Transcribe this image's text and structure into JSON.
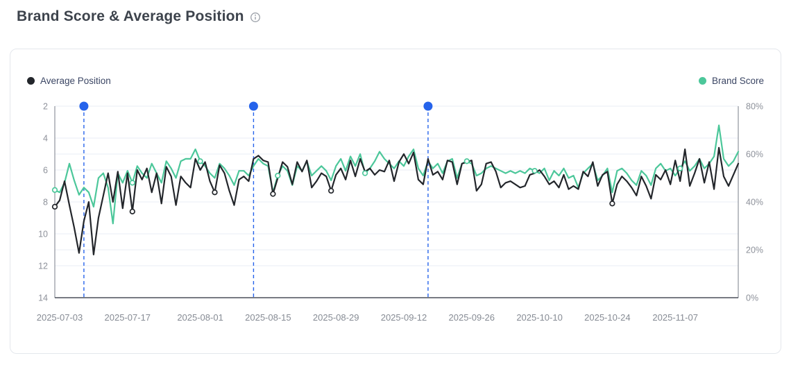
{
  "header": {
    "title": "Brand Score & Average Position",
    "info_icon": "info-icon"
  },
  "legend": {
    "average_position": {
      "label": "Average Position",
      "color": "#23262b"
    },
    "brand_score": {
      "label": "Brand Score",
      "color": "#4cc79a"
    }
  },
  "colors": {
    "event_blue": "#2563eb",
    "grid": "#e9ecf4",
    "axis_line": "#90949c",
    "baseline": "#4a4f58",
    "tick_text": "#8d919a"
  },
  "chart_data": {
    "type": "line",
    "title": "Brand Score & Average Position",
    "x": [
      "2025-07-02",
      "2025-07-03",
      "2025-07-04",
      "2025-07-05",
      "2025-07-06",
      "2025-07-07",
      "2025-07-08",
      "2025-07-09",
      "2025-07-10",
      "2025-07-11",
      "2025-07-12",
      "2025-07-13",
      "2025-07-14",
      "2025-07-15",
      "2025-07-16",
      "2025-07-17",
      "2025-07-18",
      "2025-07-19",
      "2025-07-20",
      "2025-07-21",
      "2025-07-22",
      "2025-07-23",
      "2025-07-24",
      "2025-07-25",
      "2025-07-26",
      "2025-07-27",
      "2025-07-28",
      "2025-07-29",
      "2025-07-30",
      "2025-07-31",
      "2025-08-01",
      "2025-08-02",
      "2025-08-03",
      "2025-08-04",
      "2025-08-05",
      "2025-08-06",
      "2025-08-07",
      "2025-08-08",
      "2025-08-09",
      "2025-08-10",
      "2025-08-11",
      "2025-08-12",
      "2025-08-13",
      "2025-08-14",
      "2025-08-15",
      "2025-08-16",
      "2025-08-17",
      "2025-08-18",
      "2025-08-19",
      "2025-08-20",
      "2025-08-21",
      "2025-08-22",
      "2025-08-23",
      "2025-08-24",
      "2025-08-25",
      "2025-08-26",
      "2025-08-27",
      "2025-08-28",
      "2025-08-29",
      "2025-08-30",
      "2025-08-31",
      "2025-09-01",
      "2025-09-02",
      "2025-09-03",
      "2025-09-04",
      "2025-09-05",
      "2025-09-06",
      "2025-09-07",
      "2025-09-08",
      "2025-09-09",
      "2025-09-10",
      "2025-09-11",
      "2025-09-12",
      "2025-09-13",
      "2025-09-14",
      "2025-09-15",
      "2025-09-16",
      "2025-09-17",
      "2025-09-18",
      "2025-09-19",
      "2025-09-20",
      "2025-09-21",
      "2025-09-22",
      "2025-09-23",
      "2025-09-24",
      "2025-09-25",
      "2025-09-26",
      "2025-09-27",
      "2025-09-28",
      "2025-09-29",
      "2025-09-30",
      "2025-10-01",
      "2025-10-02",
      "2025-10-03",
      "2025-10-04",
      "2025-10-05",
      "2025-10-06",
      "2025-10-07",
      "2025-10-08",
      "2025-10-09",
      "2025-10-10",
      "2025-10-11",
      "2025-10-12",
      "2025-10-13",
      "2025-10-14",
      "2025-10-15",
      "2025-10-16",
      "2025-10-17",
      "2025-10-18",
      "2025-10-19",
      "2025-10-20",
      "2025-10-21",
      "2025-10-22",
      "2025-10-23",
      "2025-10-24",
      "2025-10-25",
      "2025-10-26",
      "2025-10-27",
      "2025-10-28",
      "2025-10-29",
      "2025-10-30",
      "2025-10-31",
      "2025-11-01",
      "2025-11-02",
      "2025-11-03",
      "2025-11-04",
      "2025-11-05",
      "2025-11-06",
      "2025-11-07",
      "2025-11-08",
      "2025-11-09",
      "2025-11-10",
      "2025-11-11",
      "2025-11-12",
      "2025-11-13",
      "2025-11-14",
      "2025-11-15",
      "2025-11-16",
      "2025-11-17",
      "2025-11-18",
      "2025-11-19",
      "2025-11-20"
    ],
    "series": [
      {
        "name": "Average Position",
        "axis": "left",
        "color": "#23262b",
        "values": [
          8.3,
          7.9,
          6.7,
          8.2,
          9.6,
          11.2,
          9.2,
          8.0,
          11.3,
          9.0,
          7.6,
          6.2,
          8.0,
          6.1,
          8.4,
          6.2,
          8.6,
          6.0,
          6.6,
          5.9,
          7.4,
          6.2,
          8.1,
          5.8,
          6.4,
          8.2,
          6.4,
          6.8,
          7.1,
          5.3,
          6.0,
          5.5,
          6.7,
          7.4,
          5.7,
          6.2,
          7.3,
          8.2,
          6.6,
          6.4,
          6.7,
          5.3,
          5.1,
          5.4,
          5.5,
          7.5,
          6.5,
          5.5,
          5.8,
          6.9,
          5.5,
          6.1,
          5.4,
          7.1,
          6.7,
          6.2,
          6.4,
          7.3,
          6.3,
          5.9,
          6.6,
          5.4,
          6.4,
          5.3,
          6.1,
          5.9,
          6.3,
          6.0,
          6.1,
          5.4,
          6.7,
          5.5,
          5.0,
          5.6,
          4.9,
          6.6,
          6.9,
          5.3,
          6.3,
          6.1,
          6.6,
          5.4,
          5.5,
          6.9,
          5.6,
          5.5,
          5.4,
          7.3,
          6.9,
          5.6,
          5.5,
          6.1,
          7.1,
          6.8,
          6.7,
          6.9,
          7.1,
          7.0,
          6.3,
          6.2,
          6.0,
          6.4,
          6.9,
          6.7,
          7.1,
          6.3,
          7.2,
          7.0,
          7.2,
          6.1,
          6.4,
          5.5,
          7.0,
          6.3,
          6.1,
          8.1,
          6.9,
          6.4,
          6.7,
          7.1,
          7.6,
          6.4,
          7.0,
          7.8,
          6.3,
          6.6,
          6.0,
          6.9,
          5.4,
          6.7,
          4.7,
          7.0,
          6.2,
          5.3,
          6.8,
          5.5,
          7.2,
          4.6,
          6.4,
          7.0,
          6.3,
          5.6
        ],
        "marker_indices": [
          0,
          16,
          33,
          45,
          57,
          115
        ]
      },
      {
        "name": "Brand Score",
        "axis": "right",
        "color": "#4cc79a",
        "values": [
          45,
          44,
          48,
          56,
          49,
          43,
          46,
          44,
          38,
          50,
          52,
          46,
          31,
          52,
          48,
          53,
          48,
          55,
          52,
          50,
          56,
          52,
          48,
          57,
          54,
          50,
          57,
          58,
          58,
          62,
          57,
          55,
          52,
          50,
          56,
          54,
          51,
          47,
          53,
          53,
          51,
          55,
          58,
          56,
          55,
          44,
          51,
          55,
          53,
          47,
          55,
          53,
          57,
          51,
          53,
          55,
          53,
          49,
          55,
          58,
          53,
          59,
          55,
          60,
          52,
          54,
          57,
          61,
          58,
          56,
          54,
          57,
          55,
          59,
          62,
          54,
          51,
          57,
          54,
          56,
          52,
          57,
          58,
          50,
          56,
          57,
          56,
          51,
          52,
          54,
          55,
          54,
          53,
          52,
          53,
          52,
          53,
          52,
          54,
          53,
          52,
          54,
          49,
          53,
          51,
          54,
          50,
          51,
          46,
          52,
          54,
          56,
          49,
          51,
          54,
          44,
          53,
          54,
          52,
          49,
          47,
          53,
          51,
          47,
          54,
          56,
          53,
          54,
          51,
          54,
          57,
          53,
          55,
          58,
          54,
          56,
          59,
          72,
          58,
          55,
          57,
          61
        ],
        "marker_indices": [
          0,
          16,
          30,
          46,
          64,
          85,
          99,
          129
        ]
      }
    ],
    "left_axis": {
      "label": "Average Position",
      "ticks": [
        2,
        4,
        6,
        8,
        10,
        12,
        14
      ],
      "min": 2,
      "max": 14,
      "inverted": true
    },
    "right_axis": {
      "label": "Brand Score",
      "tick_labels": [
        "0%",
        "20%",
        "40%",
        "60%",
        "80%"
      ],
      "tick_values": [
        0,
        20,
        40,
        60,
        80
      ],
      "min": 0,
      "max": 80,
      "unit": "%"
    },
    "x_tick_labels": [
      "2025-07-03",
      "2025-07-17",
      "2025-08-01",
      "2025-08-15",
      "2025-08-29",
      "2025-09-12",
      "2025-09-26",
      "2025-10-10",
      "2025-10-24",
      "2025-11-07"
    ],
    "event_lines": {
      "dates": [
        "2025-07-08",
        "2025-08-12",
        "2025-09-17"
      ],
      "color": "#2563eb"
    },
    "grid": true,
    "legend_position": "top"
  }
}
